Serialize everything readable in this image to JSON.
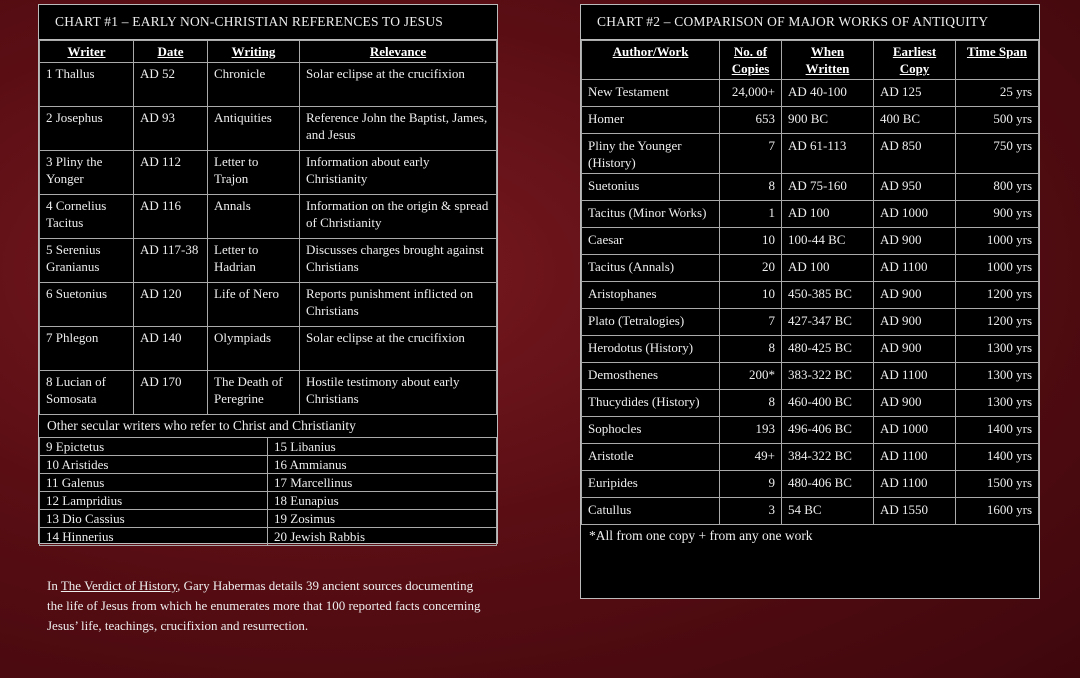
{
  "chart1": {
    "title": "CHART #1 – EARLY NON-CHRISTIAN REFERENCES TO JESUS",
    "header": [
      "Writer",
      "Date",
      "Writing",
      "Relevance"
    ],
    "rows": [
      [
        "1 Thallus",
        "AD 52",
        "Chronicle",
        "Solar eclipse at the crucifixion"
      ],
      [
        "2 Josephus",
        "AD 93",
        "Antiquities",
        "Reference John the Baptist, James, and Jesus"
      ],
      [
        "3 Pliny the Yonger",
        "AD 112",
        "Letter to Trajon",
        "Information about early Christianity"
      ],
      [
        "4 Cornelius Tacitus",
        "AD 116",
        "Annals",
        "Information on the origin & spread of Christianity"
      ],
      [
        "5 Serenius Granianus",
        "AD 117-38",
        "Letter to Hadrian",
        "Discusses charges brought against Christians"
      ],
      [
        "6 Suetonius",
        "AD 120",
        "Life of Nero",
        "Reports punishment inflicted on Christians"
      ],
      [
        "7 Phlegon",
        "AD 140",
        "Olympiads",
        "Solar eclipse at the crucifixion"
      ],
      [
        "8 Lucian of Somosata",
        "AD 170",
        "The Death of Peregrine",
        "Hostile testimony about early Christians"
      ]
    ],
    "other_title": "Other secular writers who refer to Christ and Christianity",
    "other_rows": [
      [
        "9 Epictetus",
        "15 Libanius"
      ],
      [
        "10 Aristides",
        "16 Ammianus"
      ],
      [
        "11 Galenus",
        "17 Marcellinus"
      ],
      [
        "12 Lampridius",
        "18 Eunapius"
      ],
      [
        "13 Dio Cassius",
        "19 Zosimus"
      ],
      [
        "14 Hinnerius",
        "20 Jewish Rabbis"
      ]
    ]
  },
  "note": {
    "before": "In",
    "book": "The Verdict of History",
    "after": ", Gary Habermas details 39 ancient sources documenting the life of Jesus from which he enumerates more that 100 reported facts concerning Jesus’ life, teachings, crucifixion and resurrection."
  },
  "chart2": {
    "title": "CHART #2 – COMPARISON OF MAJOR WORKS OF ANTIQUITY",
    "header": [
      "Author/Work",
      "No. of Copies",
      "When Written",
      "Earliest Copy",
      "Time Span"
    ],
    "rows": [
      [
        "New Testament",
        "24,000+",
        "AD 40-100",
        "AD 125",
        "25 yrs"
      ],
      [
        "Homer",
        "653",
        "900 BC",
        "400 BC",
        "500 yrs"
      ],
      [
        "Pliny the Younger (History)",
        "7",
        "AD 61-113",
        "AD 850",
        "750 yrs"
      ],
      [
        "Suetonius",
        "8",
        "AD 75-160",
        "AD 950",
        "800 yrs"
      ],
      [
        "Tacitus (Minor Works)",
        "1",
        "AD 100",
        "AD 1000",
        "900 yrs"
      ],
      [
        "Caesar",
        "10",
        "100-44 BC",
        "AD 900",
        "1000 yrs"
      ],
      [
        "Tacitus (Annals)",
        "20",
        "AD 100",
        "AD 1100",
        "1000 yrs"
      ],
      [
        "Aristophanes",
        "10",
        "450-385 BC",
        "AD 900",
        "1200 yrs"
      ],
      [
        "Plato (Tetralogies)",
        "7",
        "427-347 BC",
        "AD 900",
        "1200 yrs"
      ],
      [
        "Herodotus (History)",
        "8",
        "480-425 BC",
        "AD 900",
        "1300 yrs"
      ],
      [
        "Demosthenes",
        "200*",
        "383-322 BC",
        "AD 1100",
        "1300 yrs"
      ],
      [
        "Thucydides (History)",
        "8",
        "460-400 BC",
        "AD 900",
        "1300 yrs"
      ],
      [
        "Sophocles",
        "193",
        "496-406 BC",
        "AD 1000",
        "1400 yrs"
      ],
      [
        "Aristotle",
        "49+",
        "384-322 BC",
        "AD 1100",
        "1400 yrs"
      ],
      [
        "Euripides",
        "9",
        "480-406 BC",
        "AD 1100",
        "1500 yrs"
      ],
      [
        "Catullus",
        "3",
        "54 BC",
        "AD 1550",
        "1600 yrs"
      ]
    ],
    "footnote": "*All from one copy + from any one work"
  }
}
